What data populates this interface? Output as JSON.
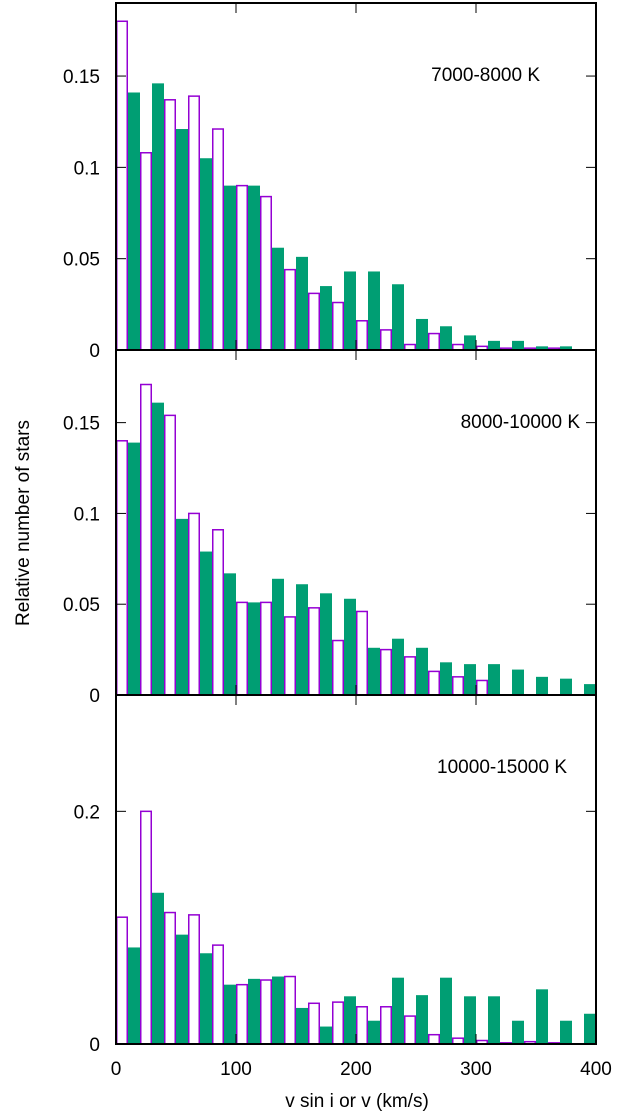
{
  "colors": {
    "filled_series": "#009e73",
    "open_series": "#9400d3",
    "frame": "#000000"
  },
  "chart_data": {
    "type": "bar",
    "xlabel": "v sin i or v (km/s)",
    "ylabel": "Relative number of stars",
    "x_ticks": [
      "0",
      "100",
      "200",
      "300",
      "400"
    ],
    "xlim": [
      0,
      400
    ],
    "bin_width": 10,
    "series_styles": {
      "filled": "filled green bars",
      "open": "open purple bars"
    },
    "panels": [
      {
        "label": "7000-8000 K",
        "ylim": [
          0,
          0.19
        ],
        "y_ticks": [
          "0",
          "0.05",
          "0.1",
          "0.15"
        ],
        "y_tick_values": [
          0,
          0.05,
          0.1,
          0.15
        ],
        "open": {
          "x": [
            0,
            20,
            40,
            60,
            80,
            100,
            120,
            140,
            160,
            180,
            200,
            220,
            240,
            260,
            280,
            300,
            320,
            340,
            360,
            380
          ],
          "values": [
            0.18,
            0.108,
            0.137,
            0.139,
            0.121,
            0.09,
            0.084,
            0.044,
            0.031,
            0.026,
            0.016,
            0.011,
            0.003,
            0.009,
            0.003,
            0.002,
            0.001,
            0.001,
            0.001,
            0.0
          ]
        },
        "filled": {
          "x": [
            10,
            30,
            50,
            70,
            90,
            110,
            130,
            150,
            170,
            190,
            210,
            230,
            250,
            270,
            290,
            310,
            330,
            350,
            370,
            390
          ],
          "values": [
            0.141,
            0.146,
            0.121,
            0.105,
            0.09,
            0.09,
            0.056,
            0.051,
            0.035,
            0.043,
            0.043,
            0.036,
            0.017,
            0.013,
            0.008,
            0.005,
            0.005,
            0.002,
            0.002,
            0.0
          ]
        }
      },
      {
        "label": "8000-10000 K",
        "ylim": [
          0,
          0.19
        ],
        "y_ticks": [
          "0",
          "0.05",
          "0.1",
          "0.15"
        ],
        "y_tick_values": [
          0,
          0.05,
          0.1,
          0.15
        ],
        "open": {
          "x": [
            0,
            20,
            40,
            60,
            80,
            100,
            120,
            140,
            160,
            180,
            200,
            220,
            240,
            260,
            280,
            300,
            320,
            340,
            360,
            380
          ],
          "values": [
            0.14,
            0.171,
            0.154,
            0.1,
            0.091,
            0.051,
            0.051,
            0.043,
            0.048,
            0.03,
            0.046,
            0.025,
            0.021,
            0.013,
            0.01,
            0.008,
            0.0,
            0.0,
            0.0,
            0.0
          ]
        },
        "filled": {
          "x": [
            10,
            30,
            50,
            70,
            90,
            110,
            130,
            150,
            170,
            190,
            210,
            230,
            250,
            270,
            290,
            310,
            330,
            350,
            370,
            390
          ],
          "values": [
            0.139,
            0.161,
            0.097,
            0.079,
            0.067,
            0.051,
            0.064,
            0.061,
            0.056,
            0.053,
            0.026,
            0.031,
            0.026,
            0.018,
            0.017,
            0.017,
            0.014,
            0.01,
            0.009,
            0.006
          ]
        }
      },
      {
        "label": "10000-15000 K",
        "ylim": [
          0,
          0.3
        ],
        "y_ticks": [
          "0",
          "0.2"
        ],
        "y_tick_values": [
          0,
          0.2
        ],
        "open": {
          "x": [
            0,
            20,
            40,
            60,
            80,
            100,
            120,
            140,
            160,
            180,
            200,
            220,
            240,
            260,
            280,
            300,
            320,
            340,
            360,
            380
          ],
          "values": [
            0.109,
            0.2,
            0.113,
            0.111,
            0.085,
            0.051,
            0.055,
            0.058,
            0.035,
            0.036,
            0.032,
            0.032,
            0.024,
            0.008,
            0.005,
            0.003,
            0.001,
            0.002,
            0.001,
            0.0
          ]
        },
        "filled": {
          "x": [
            10,
            30,
            50,
            70,
            90,
            110,
            130,
            150,
            170,
            190,
            210,
            230,
            250,
            270,
            290,
            310,
            330,
            350,
            370,
            390
          ],
          "values": [
            0.083,
            0.13,
            0.094,
            0.078,
            0.051,
            0.056,
            0.058,
            0.031,
            0.015,
            0.041,
            0.02,
            0.057,
            0.042,
            0.057,
            0.041,
            0.041,
            0.02,
            0.047,
            0.02,
            0.026
          ]
        }
      }
    ]
  }
}
